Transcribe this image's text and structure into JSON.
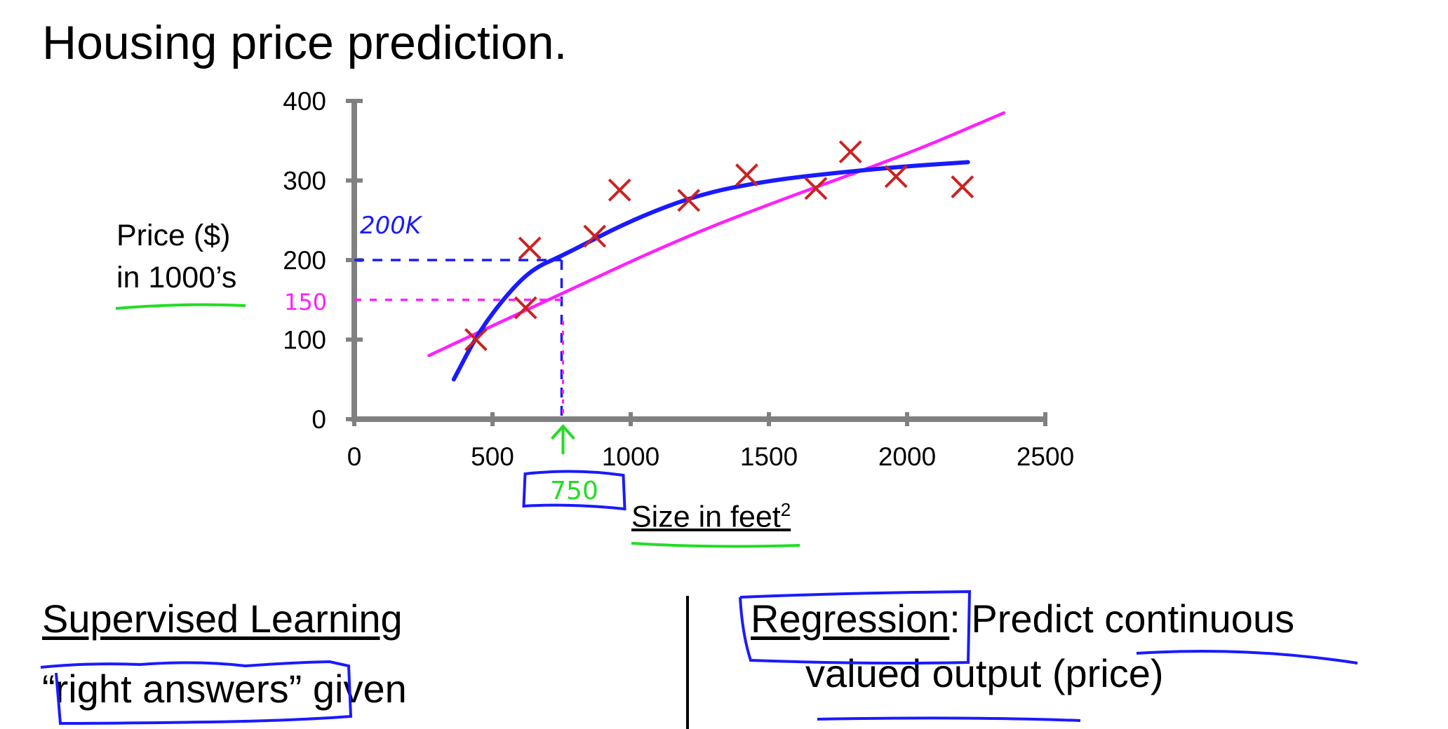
{
  "title": "Housing price prediction.",
  "chart_data": {
    "type": "scatter",
    "xlabel": "Size in feet",
    "xlabel_sup": "2",
    "ylabel_lines": [
      "Price ($)",
      "in 1000’s"
    ],
    "xlim": [
      0,
      2500
    ],
    "ylim": [
      0,
      400
    ],
    "x_ticks": [
      0,
      500,
      1000,
      1500,
      2000,
      2500
    ],
    "y_ticks": [
      0,
      100,
      200,
      300,
      400
    ],
    "grid": false,
    "points": [
      {
        "x": 440,
        "y": 100
      },
      {
        "x": 620,
        "y": 140
      },
      {
        "x": 635,
        "y": 215
      },
      {
        "x": 870,
        "y": 230
      },
      {
        "x": 960,
        "y": 288
      },
      {
        "x": 1210,
        "y": 275
      },
      {
        "x": 1420,
        "y": 307
      },
      {
        "x": 1670,
        "y": 290
      },
      {
        "x": 1795,
        "y": 336
      },
      {
        "x": 1960,
        "y": 305
      },
      {
        "x": 2200,
        "y": 292
      }
    ],
    "fits": [
      {
        "kind": "straight",
        "color": "#ff1fff",
        "points": [
          [
            270,
            80
          ],
          [
            750,
            158
          ],
          [
            1200,
            230
          ],
          [
            1600,
            283
          ],
          [
            2000,
            333
          ],
          [
            2350,
            385
          ]
        ]
      },
      {
        "kind": "curve",
        "color": "#1a1aff",
        "points": [
          [
            360,
            50
          ],
          [
            450,
            110
          ],
          [
            560,
            160
          ],
          [
            650,
            190
          ],
          [
            750,
            205
          ],
          [
            1000,
            250
          ],
          [
            1250,
            283
          ],
          [
            1500,
            300
          ],
          [
            1750,
            310
          ],
          [
            2000,
            318
          ],
          [
            2220,
            323
          ]
        ]
      }
    ],
    "annotations": {
      "query_x_label": "750",
      "blue_value_label": "200K",
      "pink_value_label": "150",
      "query_x": 750,
      "blue_y": 200,
      "pink_y": 150
    },
    "colors": {
      "axis": "#808080",
      "marker": "#cc2222",
      "blue": "#1a1aff",
      "pink": "#ff1fff",
      "green": "#22dd22"
    }
  },
  "text": {
    "supervised_heading": "Supervised Learning",
    "supervised_line": "“right answers” given",
    "regression_word": "Regression",
    "regression_rest": ": Predict continuous",
    "regression_line2": "valued output (price)"
  }
}
